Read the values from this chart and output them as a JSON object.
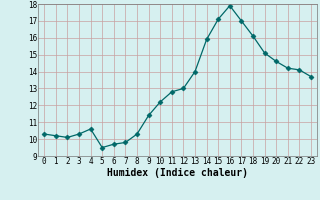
{
  "x": [
    0,
    1,
    2,
    3,
    4,
    5,
    6,
    7,
    8,
    9,
    10,
    11,
    12,
    13,
    14,
    15,
    16,
    17,
    18,
    19,
    20,
    21,
    22,
    23
  ],
  "y": [
    10.3,
    10.2,
    10.1,
    10.3,
    10.6,
    9.5,
    9.7,
    9.8,
    10.3,
    11.4,
    12.2,
    12.8,
    13.0,
    14.0,
    15.9,
    17.1,
    17.9,
    17.0,
    16.1,
    15.1,
    14.6,
    14.2,
    14.1,
    13.7
  ],
  "xlabel": "Humidex (Indice chaleur)",
  "ylim": [
    9,
    18
  ],
  "xlim_min": -0.5,
  "xlim_max": 23.5,
  "yticks": [
    9,
    10,
    11,
    12,
    13,
    14,
    15,
    16,
    17,
    18
  ],
  "xticks": [
    0,
    1,
    2,
    3,
    4,
    5,
    6,
    7,
    8,
    9,
    10,
    11,
    12,
    13,
    14,
    15,
    16,
    17,
    18,
    19,
    20,
    21,
    22,
    23
  ],
  "line_color": "#006868",
  "marker": "D",
  "marker_size": 2.5,
  "bg_color": "#d6f0f0",
  "grid_color": "#c8a0a0",
  "tick_fontsize": 5.5,
  "xlabel_fontsize": 7
}
